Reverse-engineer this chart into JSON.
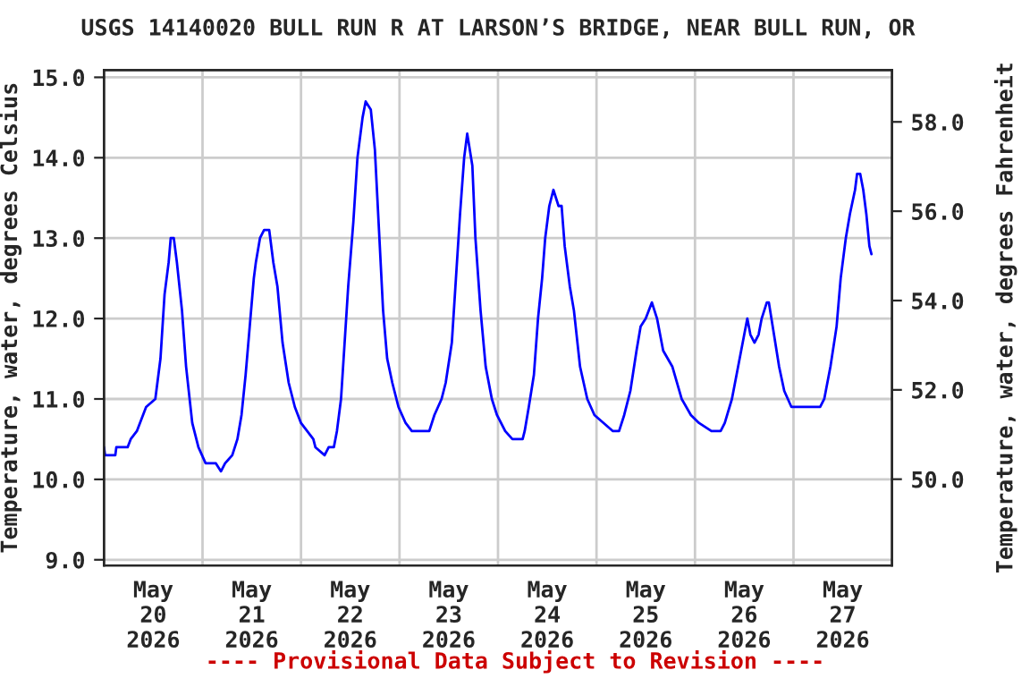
{
  "chart_data": {
    "type": "line",
    "title": "USGS 14140020 BULL RUN R AT LARSON’S BRIDGE, NEAR BULL RUN, OR",
    "ylabel": "Temperature, water, degrees Celsius",
    "y2label": "Temperature, water, degrees Fahrenheit",
    "annotations": [
      "---- Provisional Data Subject to Revision ----"
    ],
    "xlim": [
      "2026-05-20T00:00",
      "2026-05-28T00:00"
    ],
    "xticks": [
      {
        "value": "2026-05-20T12:00",
        "label": "May\n20\n2026"
      },
      {
        "value": "2026-05-21T12:00",
        "label": "May\n21\n2026"
      },
      {
        "value": "2026-05-22T12:00",
        "label": "May\n22\n2026"
      },
      {
        "value": "2026-05-23T12:00",
        "label": "May\n23\n2026"
      },
      {
        "value": "2026-05-24T12:00",
        "label": "May\n24\n2026"
      },
      {
        "value": "2026-05-25T12:00",
        "label": "May\n25\n2026"
      },
      {
        "value": "2026-05-26T12:00",
        "label": "May\n26\n2026"
      },
      {
        "value": "2026-05-27T12:00",
        "label": "May\n27\n2026"
      },
      {
        "value": "2026-05-21T00:00",
        "label": null
      },
      {
        "value": "2026-05-22T00:00",
        "label": null
      },
      {
        "value": "2026-05-23T00:00",
        "label": null
      },
      {
        "value": "2026-05-24T00:00",
        "label": null
      },
      {
        "value": "2026-05-25T00:00",
        "label": null
      },
      {
        "value": "2026-05-26T00:00",
        "label": null
      },
      {
        "value": "2026-05-27T00:00",
        "label": null
      }
    ],
    "ylim": [
      8.93,
      15.09
    ],
    "yticks": [
      {
        "value": 9,
        "label": "9.0"
      },
      {
        "value": 10,
        "label": "10.0"
      },
      {
        "value": 11,
        "label": "11.0"
      },
      {
        "value": 12,
        "label": "12.0"
      },
      {
        "value": 13,
        "label": "13.0"
      },
      {
        "value": 14,
        "label": "14.0"
      },
      {
        "value": 15,
        "label": "15.0"
      }
    ],
    "y2lim": [
      48.07,
      59.16
    ],
    "y2ticks": [
      {
        "value": 50,
        "label": "50.0"
      },
      {
        "value": 52,
        "label": "52.0"
      },
      {
        "value": 54,
        "label": "54.0"
      },
      {
        "value": 56,
        "label": "56.0"
      },
      {
        "value": 58,
        "label": "58.0"
      }
    ],
    "grid": true,
    "legend": false,
    "marker": "none",
    "line_style": "solid",
    "series": [
      {
        "color": "#0000ff",
        "x": [
          "2026-05-20T00:00",
          "2026-05-20T00:15",
          "2026-05-20T02:45",
          "2026-05-20T03:00",
          "2026-05-20T05:45",
          "2026-05-20T06:30",
          "2026-05-20T08:00",
          "2026-05-20T10:15",
          "2026-05-20T12:30",
          "2026-05-20T13:45",
          "2026-05-20T14:45",
          "2026-05-20T15:45",
          "2026-05-20T16:15",
          "2026-05-20T17:00",
          "2026-05-20T17:45",
          "2026-05-20T19:00",
          "2026-05-20T20:00",
          "2026-05-20T21:30",
          "2026-05-20T23:00",
          "2026-05-21T00:45",
          "2026-05-21T03:15",
          "2026-05-21T04:30",
          "2026-05-21T05:30",
          "2026-05-21T07:15",
          "2026-05-21T08:30",
          "2026-05-21T09:30",
          "2026-05-21T10:30",
          "2026-05-21T11:30",
          "2026-05-21T12:30",
          "2026-05-21T13:00",
          "2026-05-21T14:00",
          "2026-05-21T15:00",
          "2026-05-21T16:15",
          "2026-05-21T17:15",
          "2026-05-21T18:15",
          "2026-05-21T19:30",
          "2026-05-21T21:00",
          "2026-05-21T22:30",
          "2026-05-22T00:00",
          "2026-05-22T01:30",
          "2026-05-22T03:00",
          "2026-05-22T03:30",
          "2026-05-22T05:45",
          "2026-05-22T06:45",
          "2026-05-22T08:00",
          "2026-05-22T08:45",
          "2026-05-22T09:45",
          "2026-05-22T10:30",
          "2026-05-22T11:30",
          "2026-05-22T12:45",
          "2026-05-22T13:45",
          "2026-05-22T15:00",
          "2026-05-22T15:45",
          "2026-05-22T17:00",
          "2026-05-22T18:00",
          "2026-05-22T19:00",
          "2026-05-22T20:00",
          "2026-05-22T21:00",
          "2026-05-22T22:15",
          "2026-05-22T23:45",
          "2026-05-23T01:30",
          "2026-05-23T03:00",
          "2026-05-23T07:15",
          "2026-05-23T08:30",
          "2026-05-23T10:15",
          "2026-05-23T11:15",
          "2026-05-23T12:45",
          "2026-05-23T13:45",
          "2026-05-23T14:45",
          "2026-05-23T15:45",
          "2026-05-23T16:30",
          "2026-05-23T17:45",
          "2026-05-23T18:30",
          "2026-05-23T19:45",
          "2026-05-23T21:00",
          "2026-05-23T22:30",
          "2026-05-23T23:45",
          "2026-05-24T01:45",
          "2026-05-24T03:30",
          "2026-05-24T06:00",
          "2026-05-24T06:30",
          "2026-05-24T07:30",
          "2026-05-24T08:45",
          "2026-05-24T09:45",
          "2026-05-24T10:45",
          "2026-05-24T11:30",
          "2026-05-24T12:30",
          "2026-05-24T13:30",
          "2026-05-24T14:45",
          "2026-05-24T15:30",
          "2026-05-24T16:15",
          "2026-05-24T17:30",
          "2026-05-24T18:30",
          "2026-05-24T20:00",
          "2026-05-24T21:45",
          "2026-05-24T23:30",
          "2026-05-25T01:45",
          "2026-05-25T04:00",
          "2026-05-25T05:30",
          "2026-05-25T06:45",
          "2026-05-25T08:15",
          "2026-05-25T09:45",
          "2026-05-25T10:45",
          "2026-05-25T12:00",
          "2026-05-25T13:30",
          "2026-05-25T14:45",
          "2026-05-25T16:15",
          "2026-05-25T18:30",
          "2026-05-25T20:45",
          "2026-05-25T23:00",
          "2026-05-26T01:00",
          "2026-05-26T04:00",
          "2026-05-26T06:15",
          "2026-05-26T07:15",
          "2026-05-26T09:00",
          "2026-05-26T10:30",
          "2026-05-26T12:00",
          "2026-05-26T12:45",
          "2026-05-26T13:30",
          "2026-05-26T14:30",
          "2026-05-26T15:30",
          "2026-05-26T16:15",
          "2026-05-26T17:30",
          "2026-05-26T18:00",
          "2026-05-26T19:15",
          "2026-05-26T20:30",
          "2026-05-26T21:45",
          "2026-05-26T23:30",
          "2026-05-27T06:30",
          "2026-05-27T07:30",
          "2026-05-27T09:00",
          "2026-05-27T10:30",
          "2026-05-27T11:30",
          "2026-05-27T12:45",
          "2026-05-27T13:45",
          "2026-05-27T15:00",
          "2026-05-27T15:30",
          "2026-05-27T16:15",
          "2026-05-27T17:00",
          "2026-05-27T17:45",
          "2026-05-27T18:30",
          "2026-05-27T19:00"
        ],
        "values": [
          10.4,
          10.3,
          10.3,
          10.4,
          10.4,
          10.5,
          10.6,
          10.9,
          11.0,
          11.5,
          12.3,
          12.7,
          13.0,
          13.0,
          12.7,
          12.1,
          11.4,
          10.7,
          10.4,
          10.2,
          10.2,
          10.1,
          10.2,
          10.3,
          10.5,
          10.8,
          11.3,
          11.9,
          12.5,
          12.7,
          13.0,
          13.1,
          13.1,
          12.7,
          12.4,
          11.7,
          11.2,
          10.9,
          10.7,
          10.6,
          10.5,
          10.4,
          10.3,
          10.4,
          10.4,
          10.6,
          11.0,
          11.6,
          12.4,
          13.2,
          14.0,
          14.5,
          14.7,
          14.6,
          14.1,
          13.1,
          12.1,
          11.5,
          11.2,
          10.9,
          10.7,
          10.6,
          10.6,
          10.8,
          11.0,
          11.2,
          11.7,
          12.5,
          13.3,
          14.0,
          14.3,
          13.9,
          13.0,
          12.1,
          11.4,
          11.0,
          10.8,
          10.6,
          10.5,
          10.5,
          10.6,
          10.9,
          11.3,
          12.0,
          12.5,
          13.0,
          13.4,
          13.6,
          13.4,
          13.4,
          12.9,
          12.4,
          12.1,
          11.4,
          11.0,
          10.8,
          10.7,
          10.6,
          10.6,
          10.8,
          11.1,
          11.6,
          11.9,
          12.0,
          12.2,
          12.0,
          11.6,
          11.4,
          11.0,
          10.8,
          10.7,
          10.6,
          10.6,
          10.7,
          11.0,
          11.4,
          11.8,
          12.0,
          11.8,
          11.7,
          11.8,
          12.0,
          12.2,
          12.2,
          11.8,
          11.4,
          11.1,
          10.9,
          10.9,
          11.0,
          11.4,
          11.9,
          12.5,
          13.0,
          13.3,
          13.6,
          13.8,
          13.8,
          13.6,
          13.3,
          12.9,
          12.8
        ]
      }
    ]
  }
}
